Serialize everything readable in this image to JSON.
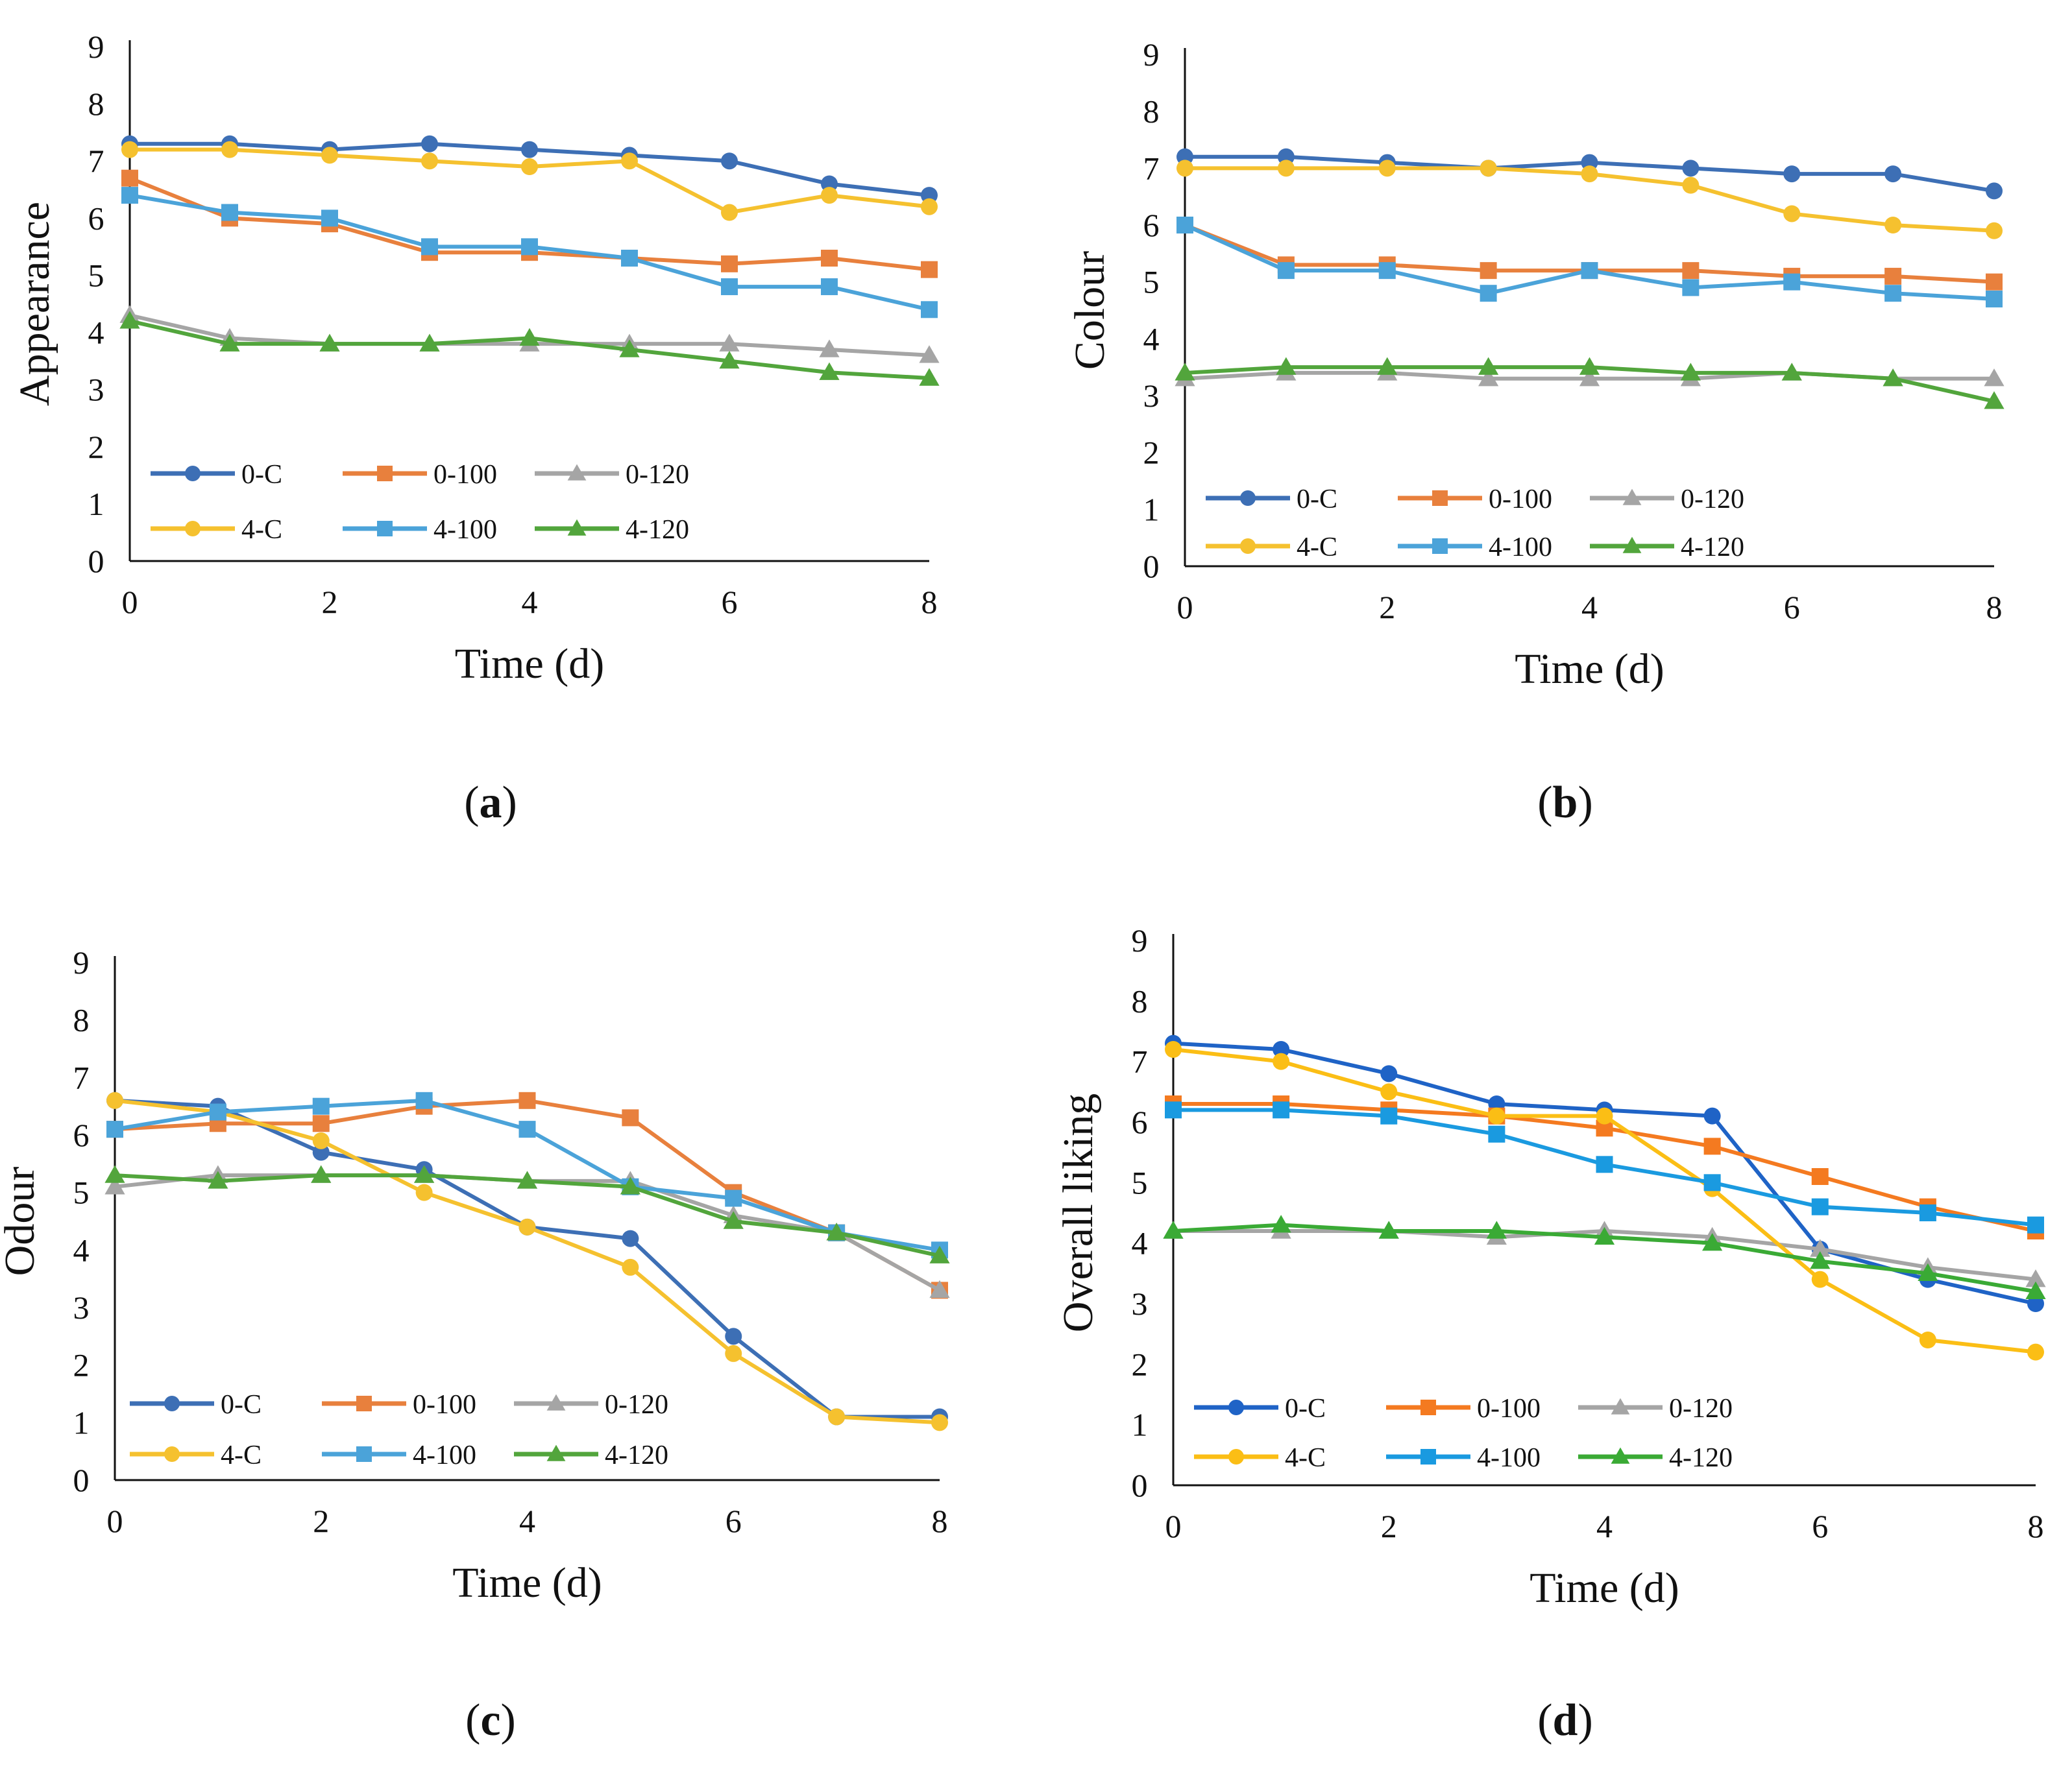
{
  "figure": {
    "panels": [
      "(a)",
      "(b)",
      "(c)",
      "(d)"
    ]
  },
  "chart_data": [
    {
      "panel": "(a)",
      "type": "line",
      "title": "",
      "xlabel": "Time (d)",
      "ylabel": "Appearance",
      "xlim": [
        0,
        8
      ],
      "ylim": [
        0,
        9
      ],
      "xticks": [
        0,
        2,
        4,
        6,
        8
      ],
      "yticks": [
        0,
        1,
        2,
        3,
        4,
        5,
        6,
        7,
        8,
        9
      ],
      "legend": "bottom-left",
      "x": [
        0,
        1,
        2,
        3,
        4,
        5,
        6,
        7,
        8
      ],
      "series": [
        {
          "name": "0-C",
          "color": "#3d6fb5",
          "marker": "circle",
          "values": [
            7.3,
            7.3,
            7.2,
            7.3,
            7.2,
            7.1,
            7.0,
            6.6,
            6.4
          ]
        },
        {
          "name": "0-100",
          "color": "#e8803d",
          "marker": "square",
          "values": [
            6.7,
            6.0,
            5.9,
            5.4,
            5.4,
            5.3,
            5.2,
            5.3,
            5.1
          ]
        },
        {
          "name": "0-120",
          "color": "#a5a5a5",
          "marker": "triangle",
          "values": [
            4.3,
            3.9,
            3.8,
            3.8,
            3.8,
            3.8,
            3.8,
            3.7,
            3.6
          ]
        },
        {
          "name": "4-C",
          "color": "#f5c12f",
          "marker": "circle",
          "values": [
            7.2,
            7.2,
            7.1,
            7.0,
            6.9,
            7.0,
            6.1,
            6.4,
            6.2
          ]
        },
        {
          "name": "4-100",
          "color": "#4ba3d9",
          "marker": "square",
          "values": [
            6.4,
            6.1,
            6.0,
            5.5,
            5.5,
            5.3,
            4.8,
            4.8,
            4.4
          ]
        },
        {
          "name": "4-120",
          "color": "#52a53c",
          "marker": "triangle",
          "values": [
            4.2,
            3.8,
            3.8,
            3.8,
            3.9,
            3.7,
            3.5,
            3.3,
            3.2
          ]
        }
      ]
    },
    {
      "panel": "(b)",
      "type": "line",
      "title": "",
      "xlabel": "Time (d)",
      "ylabel": "Colour",
      "xlim": [
        0,
        8
      ],
      "ylim": [
        0,
        9
      ],
      "xticks": [
        0,
        2,
        4,
        6,
        8
      ],
      "yticks": [
        0,
        1,
        2,
        3,
        4,
        5,
        6,
        7,
        8,
        9
      ],
      "legend": "bottom-left",
      "x": [
        0,
        1,
        2,
        3,
        4,
        5,
        6,
        7,
        8
      ],
      "series": [
        {
          "name": "0-C",
          "color": "#3d6fb5",
          "marker": "circle",
          "values": [
            7.2,
            7.2,
            7.1,
            7.0,
            7.1,
            7.0,
            6.9,
            6.9,
            6.6
          ]
        },
        {
          "name": "0-100",
          "color": "#e8803d",
          "marker": "square",
          "values": [
            6.0,
            5.3,
            5.3,
            5.2,
            5.2,
            5.2,
            5.1,
            5.1,
            5.0
          ]
        },
        {
          "name": "0-120",
          "color": "#a5a5a5",
          "marker": "triangle",
          "values": [
            3.3,
            3.4,
            3.4,
            3.3,
            3.3,
            3.3,
            3.4,
            3.3,
            3.3
          ]
        },
        {
          "name": "4-C",
          "color": "#f5c12f",
          "marker": "circle",
          "values": [
            7.0,
            7.0,
            7.0,
            7.0,
            6.9,
            6.7,
            6.2,
            6.0,
            5.9
          ]
        },
        {
          "name": "4-100",
          "color": "#4ba3d9",
          "marker": "square",
          "values": [
            6.0,
            5.2,
            5.2,
            4.8,
            5.2,
            4.9,
            5.0,
            4.8,
            4.7
          ]
        },
        {
          "name": "4-120",
          "color": "#52a53c",
          "marker": "triangle",
          "values": [
            3.4,
            3.5,
            3.5,
            3.5,
            3.5,
            3.4,
            3.4,
            3.3,
            2.9
          ]
        }
      ]
    },
    {
      "panel": "(c)",
      "type": "line",
      "title": "",
      "xlabel": "Time (d)",
      "ylabel": "Odour",
      "xlim": [
        0,
        8
      ],
      "ylim": [
        0,
        9
      ],
      "xticks": [
        0,
        2,
        4,
        6,
        8
      ],
      "yticks": [
        0,
        1,
        2,
        3,
        4,
        5,
        6,
        7,
        8,
        9
      ],
      "legend": "bottom-left",
      "x": [
        0,
        1,
        2,
        3,
        4,
        5,
        6,
        7,
        8
      ],
      "series": [
        {
          "name": "0-C",
          "color": "#3d6fb5",
          "marker": "circle",
          "values": [
            6.6,
            6.5,
            5.7,
            5.4,
            4.4,
            4.2,
            2.5,
            1.1,
            1.1
          ]
        },
        {
          "name": "0-100",
          "color": "#e8803d",
          "marker": "square",
          "values": [
            6.1,
            6.2,
            6.2,
            6.5,
            6.6,
            6.3,
            5.0,
            4.3,
            3.3
          ]
        },
        {
          "name": "0-120",
          "color": "#a5a5a5",
          "marker": "triangle",
          "values": [
            5.1,
            5.3,
            5.3,
            5.3,
            5.2,
            5.2,
            4.6,
            4.3,
            3.3
          ]
        },
        {
          "name": "4-C",
          "color": "#f5c12f",
          "marker": "circle",
          "values": [
            6.6,
            6.4,
            5.9,
            5.0,
            4.4,
            3.7,
            2.2,
            1.1,
            1.0
          ]
        },
        {
          "name": "4-100",
          "color": "#4ba3d9",
          "marker": "square",
          "values": [
            6.1,
            6.4,
            6.5,
            6.6,
            6.1,
            5.1,
            4.9,
            4.3,
            4.0
          ]
        },
        {
          "name": "4-120",
          "color": "#52a53c",
          "marker": "triangle",
          "values": [
            5.3,
            5.2,
            5.3,
            5.3,
            5.2,
            5.1,
            4.5,
            4.3,
            3.9
          ]
        }
      ]
    },
    {
      "panel": "(d)",
      "type": "line",
      "title": "",
      "xlabel": "Time (d)",
      "ylabel": "Overall liking",
      "xlim": [
        0,
        8
      ],
      "ylim": [
        0,
        9
      ],
      "xticks": [
        0,
        2,
        4,
        6,
        8
      ],
      "yticks": [
        0,
        1,
        2,
        3,
        4,
        5,
        6,
        7,
        8,
        9
      ],
      "legend": "bottom-left",
      "x": [
        0,
        1,
        2,
        3,
        4,
        5,
        6,
        7,
        8
      ],
      "series": [
        {
          "name": "0-C",
          "color": "#1f63c6",
          "marker": "circle",
          "values": [
            7.3,
            7.2,
            6.8,
            6.3,
            6.2,
            6.1,
            3.9,
            3.4,
            3.0
          ]
        },
        {
          "name": "0-100",
          "color": "#f47a20",
          "marker": "square",
          "values": [
            6.3,
            6.3,
            6.2,
            6.1,
            5.9,
            5.6,
            5.1,
            4.6,
            4.2
          ]
        },
        {
          "name": "0-120",
          "color": "#a5a5a5",
          "marker": "triangle",
          "values": [
            4.2,
            4.2,
            4.2,
            4.1,
            4.2,
            4.1,
            3.9,
            3.6,
            3.4
          ]
        },
        {
          "name": "4-C",
          "color": "#fbbe15",
          "marker": "circle",
          "values": [
            7.2,
            7.0,
            6.5,
            6.1,
            6.1,
            4.9,
            3.4,
            2.4,
            2.2
          ]
        },
        {
          "name": "4-100",
          "color": "#1a9ae0",
          "marker": "square",
          "values": [
            6.2,
            6.2,
            6.1,
            5.8,
            5.3,
            5.0,
            4.6,
            4.5,
            4.3
          ]
        },
        {
          "name": "4-120",
          "color": "#3aaa35",
          "marker": "triangle",
          "values": [
            4.2,
            4.3,
            4.2,
            4.2,
            4.1,
            4.0,
            3.7,
            3.5,
            3.2
          ]
        }
      ]
    }
  ]
}
